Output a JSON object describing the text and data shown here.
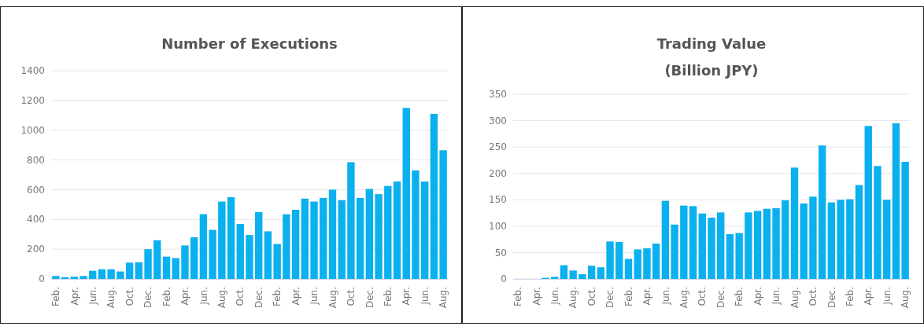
{
  "chart_data": [
    {
      "type": "bar",
      "title": "Number of Executions",
      "categories": [
        "Feb.",
        null,
        "Apr.",
        null,
        "Jun.",
        null,
        "Aug.",
        null,
        "Oct.",
        null,
        "Dec.",
        null,
        "Feb.",
        null,
        "Apr.",
        null,
        "Jun.",
        null,
        "Aug.",
        null,
        "Oct.",
        null,
        "Dec.",
        null,
        "Feb.",
        null,
        "Apr.",
        null,
        "Jun.",
        null,
        "Aug.",
        null,
        "Oct.",
        null,
        "Dec.",
        null,
        "Feb.",
        null,
        "Apr.",
        null,
        "Jun.",
        null,
        "Aug."
      ],
      "values": [
        20,
        12,
        15,
        20,
        55,
        65,
        65,
        50,
        110,
        112,
        200,
        260,
        150,
        140,
        225,
        280,
        435,
        330,
        520,
        550,
        370,
        295,
        450,
        320,
        235,
        435,
        465,
        540,
        520,
        545,
        600,
        530,
        785,
        545,
        605,
        570,
        625,
        655,
        1150,
        730,
        655,
        1110,
        865
      ],
      "color": "#0bb0ee",
      "ylim": [
        0,
        1400
      ],
      "yticks": [
        0,
        200,
        400,
        600,
        800,
        1000,
        1200,
        1400
      ],
      "grid": "y"
    },
    {
      "type": "bar",
      "title": "Trading Value\n(Billion JPY)",
      "categories": [
        "Feb.",
        null,
        "Apr.",
        null,
        "Jun.",
        null,
        "Aug.",
        null,
        "Oct.",
        null,
        "Dec.",
        null,
        "Feb.",
        null,
        "Apr.",
        null,
        "Jun.",
        null,
        "Aug.",
        null,
        "Oct.",
        null,
        "Dec.",
        null,
        "Feb.",
        null,
        "Apr.",
        null,
        "Jun.",
        null,
        "Aug.",
        null,
        "Oct.",
        null,
        "Dec.",
        null,
        "Feb.",
        null,
        "Apr.",
        null,
        "Jun.",
        null,
        "Aug."
      ],
      "values": [
        0,
        0,
        0,
        2,
        4,
        26,
        16,
        9,
        25,
        22,
        71,
        70,
        38,
        56,
        58,
        67,
        148,
        103,
        139,
        138,
        124,
        116,
        126,
        85,
        87,
        126,
        129,
        133,
        134,
        149,
        211,
        143,
        156,
        253,
        145,
        150,
        151,
        178,
        290,
        214,
        150,
        295,
        222
      ],
      "color": "#0bb0ee",
      "ylim": [
        0,
        350
      ],
      "yticks": [
        0,
        50,
        100,
        150,
        200,
        250,
        300,
        350
      ],
      "grid": "y"
    }
  ]
}
